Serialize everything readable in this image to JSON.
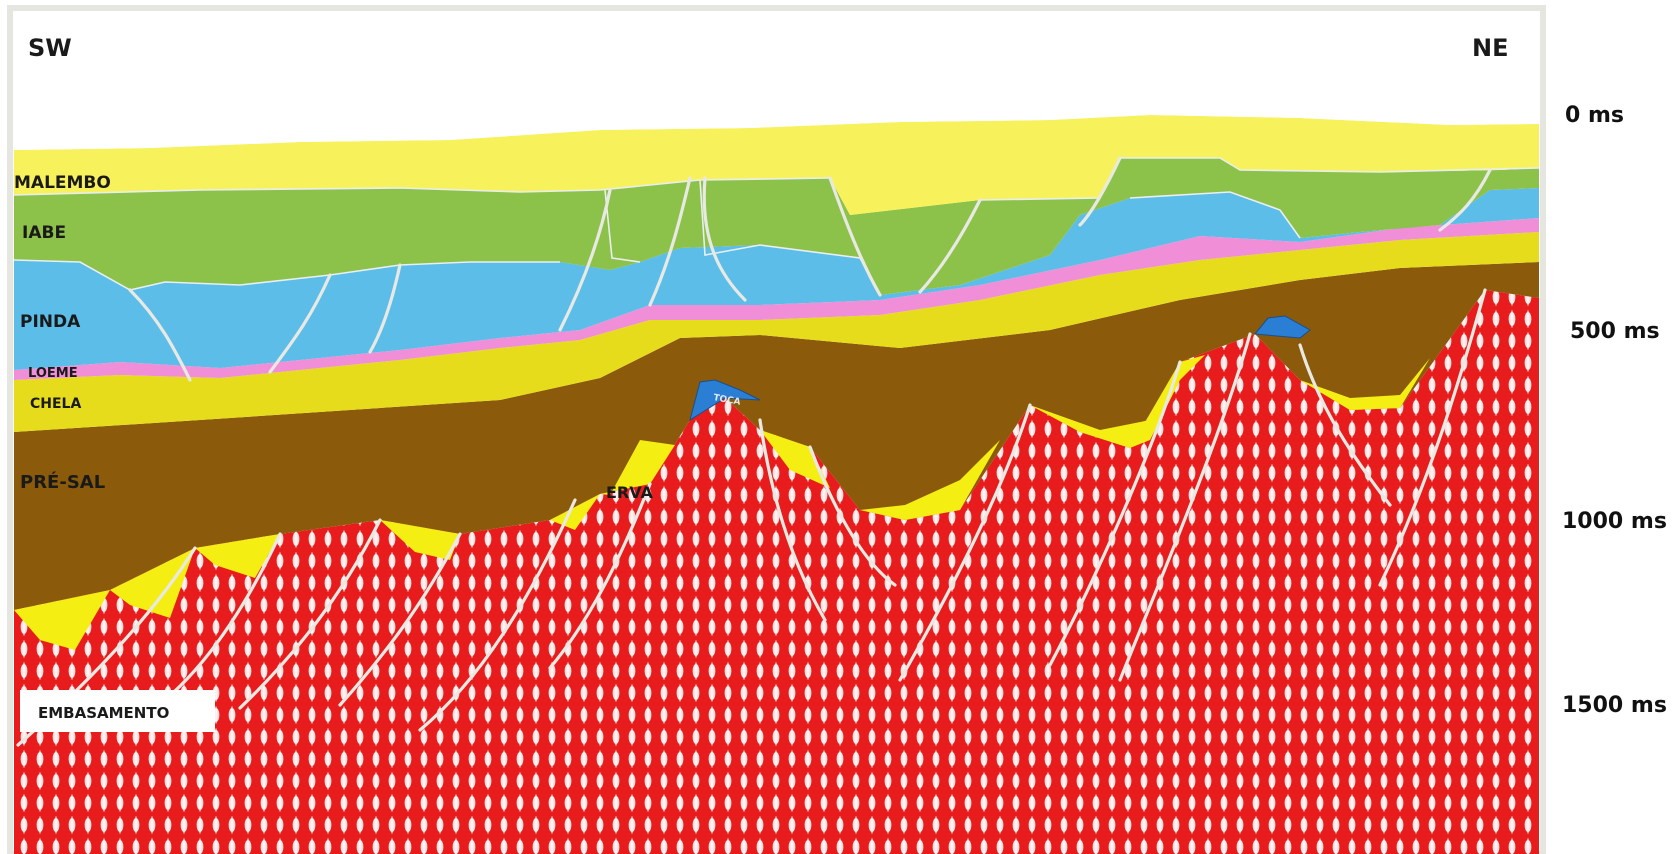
{
  "orientation": {
    "left": "SW",
    "right": "NE"
  },
  "time_axis": {
    "unit": "ms",
    "ticks": [
      "0 ms",
      "500 ms",
      "1000 ms",
      "1500 ms"
    ]
  },
  "units": {
    "malembo": "MALEMBO",
    "iabe": "IABE",
    "pinda": "PINDA",
    "loeme": "LOEME",
    "chela": "CHELA",
    "pre_sal": "PRÉ-SAL",
    "erva": "ERVA",
    "toca": "TOCA",
    "embasamento": "EMBASAMENTO"
  },
  "colors": {
    "malembo": "#f7f25c",
    "iabe": "#8cc14a",
    "pinda": "#5bbde8",
    "loeme": "#f08fd8",
    "chela": "#e6dc1c",
    "pre_sal": "#8b5a0a",
    "erva": "#f5ee12",
    "toca": "#2a7fd4",
    "embasamento": "#e81c1c"
  }
}
